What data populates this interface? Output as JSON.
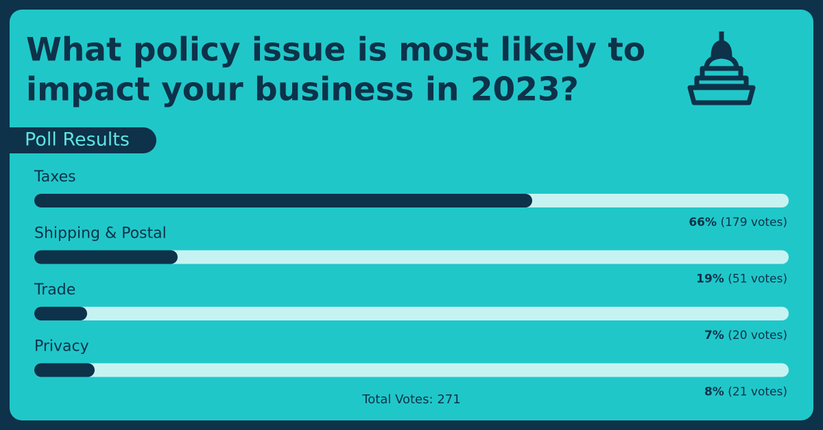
{
  "chart_data": {
    "type": "poll",
    "title": [
      "What policy issue is most likely to",
      "impact your business in 2023?"
    ],
    "subtitle": "Poll Results",
    "categories": [
      "Taxes",
      "Shipping & Postal",
      "Trade",
      "Privacy"
    ],
    "values": [
      66,
      19,
      7,
      8
    ],
    "value_labels": [
      "66%",
      "19%",
      "7%",
      "8%"
    ],
    "votes": [
      179,
      51,
      20,
      21
    ],
    "vote_labels": [
      "(179 votes)",
      "(51 votes)",
      "(20 votes)",
      "(21 votes)"
    ],
    "xlim": [
      0,
      100
    ],
    "color": "#0d3249",
    "track_color": "#c6f3f2",
    "total_label": "Total Votes:",
    "total": 271
  }
}
